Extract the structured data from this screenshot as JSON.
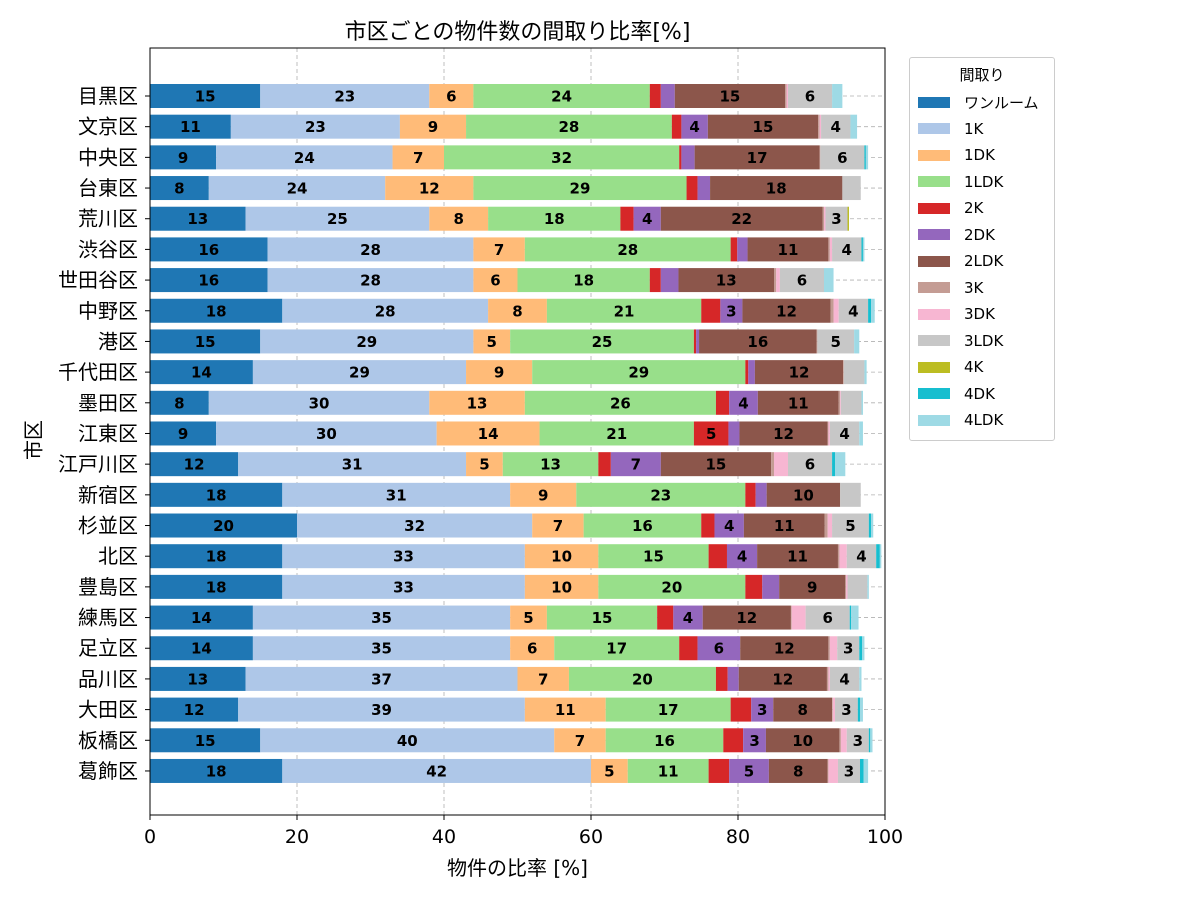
{
  "chart_data": {
    "type": "bar",
    "orientation": "horizontal",
    "stacked": true,
    "title": "市区ごとの物件数の間取り比率[%]",
    "xlabel": "物件の比率 [%]",
    "ylabel": "市区",
    "xlim": [
      0,
      100
    ],
    "x_ticks": [
      "0",
      "20",
      "40",
      "60",
      "80",
      "100"
    ],
    "grid": true,
    "legend_position": "outside-top-right",
    "legend_title": "間取り",
    "categories": [
      "目黒区",
      "文京区",
      "中央区",
      "台東区",
      "荒川区",
      "渋谷区",
      "世田谷区",
      "中野区",
      "港区",
      "千代田区",
      "墨田区",
      "江東区",
      "江戸川区",
      "新宿区",
      "杉並区",
      "北区",
      "豊島区",
      "練馬区",
      "足立区",
      "品川区",
      "大田区",
      "板橋区",
      "葛飾区"
    ],
    "series": [
      {
        "name": "ワンルーム",
        "color": "#1f77b4",
        "values": [
          15,
          11,
          9,
          8,
          13,
          16,
          16,
          18,
          15,
          14,
          8,
          9,
          12,
          18,
          20,
          18,
          18,
          14,
          14,
          13,
          12,
          15,
          18
        ]
      },
      {
        "name": "1K",
        "color": "#aec7e8",
        "values": [
          23,
          23,
          24,
          24,
          25,
          28,
          28,
          28,
          29,
          29,
          30,
          30,
          31,
          31,
          32,
          33,
          33,
          35,
          35,
          37,
          39,
          40,
          42
        ]
      },
      {
        "name": "1DK",
        "color": "#ffbb78",
        "values": [
          6,
          9,
          7,
          12,
          8,
          7,
          6,
          8,
          5,
          9,
          13,
          14,
          5,
          9,
          7,
          10,
          10,
          5,
          6,
          7,
          11,
          7,
          5
        ]
      },
      {
        "name": "1LDK",
        "color": "#98df8a",
        "values": [
          24,
          28,
          32,
          29,
          18,
          28,
          18,
          21,
          25,
          29,
          26,
          21,
          13,
          23,
          16,
          15,
          20,
          15,
          17,
          20,
          17,
          16,
          11
        ]
      },
      {
        "name": "2K",
        "color": "#d62728",
        "values": [
          1.5,
          1.3,
          0.3,
          1.5,
          1.8,
          0.9,
          1.5,
          2.6,
          0.3,
          0.4,
          1.8,
          4.7,
          1.7,
          1.4,
          1.8,
          2.5,
          2.3,
          2.2,
          2.5,
          1.6,
          2.8,
          2.7,
          2.8
        ]
      },
      {
        "name": "2DK",
        "color": "#9467bd",
        "values": [
          1.9,
          3.6,
          1.8,
          1.7,
          3.7,
          1.4,
          2.4,
          3.0,
          0.4,
          0.9,
          3.9,
          1.5,
          6.8,
          1.5,
          4.0,
          4.1,
          2.3,
          4.0,
          5.8,
          1.5,
          3.0,
          3.1,
          5.4
        ]
      },
      {
        "name": "2LDK",
        "color": "#8c564b",
        "values": [
          15,
          15,
          17,
          18,
          22,
          11,
          13,
          12,
          16,
          12,
          11,
          12,
          15,
          10,
          11,
          11,
          9,
          12,
          12,
          12,
          8,
          10,
          8
        ]
      },
      {
        "name": "3K",
        "color": "#c49c94",
        "values": [
          0.2,
          0.2,
          0.1,
          0,
          0.2,
          0.2,
          0.3,
          0.4,
          0.1,
          0.1,
          0.2,
          0.1,
          0.4,
          0,
          0.4,
          0.2,
          0.1,
          0.1,
          0.2,
          0.2,
          0.1,
          0.2,
          0.1
        ]
      },
      {
        "name": "3DK",
        "color": "#f7b6d2",
        "values": [
          0.2,
          0.2,
          0,
          0,
          0.2,
          0.3,
          0.5,
          0.7,
          0,
          0,
          0.1,
          0.2,
          1.9,
          0,
          0.6,
          1.0,
          0.2,
          1.9,
          1.0,
          0.2,
          0.3,
          0.8,
          1.3
        ]
      },
      {
        "name": "3LDK",
        "color": "#c7c7c7",
        "values": [
          6,
          4,
          6,
          2.5,
          3,
          4,
          6,
          4,
          5,
          2.8,
          2.8,
          4,
          6,
          2.8,
          5,
          4,
          2.7,
          6,
          3,
          4,
          3.1,
          3,
          3
        ]
      },
      {
        "name": "4K",
        "color": "#bcbd22",
        "values": [
          0,
          0,
          0,
          0,
          0.2,
          0,
          0,
          0,
          0,
          0,
          0,
          0,
          0,
          0,
          0,
          0,
          0,
          0,
          0,
          0,
          0,
          0,
          0
        ]
      },
      {
        "name": "4DK",
        "color": "#17becf",
        "values": [
          0,
          0,
          0.2,
          0,
          0,
          0.2,
          0,
          0.4,
          0,
          0,
          0,
          0,
          0.4,
          0,
          0.3,
          0.5,
          0,
          0.2,
          0.4,
          0,
          0.3,
          0.2,
          0.5
        ]
      },
      {
        "name": "4LDK",
        "color": "#9edae5",
        "values": [
          1.4,
          0.9,
          0.3,
          0,
          0,
          0.2,
          1.3,
          0.5,
          0.7,
          0.3,
          0.2,
          0.5,
          1.4,
          0,
          0.3,
          0.2,
          0.2,
          1.0,
          0.3,
          0.3,
          0.4,
          0.3,
          0.6
        ]
      }
    ]
  }
}
